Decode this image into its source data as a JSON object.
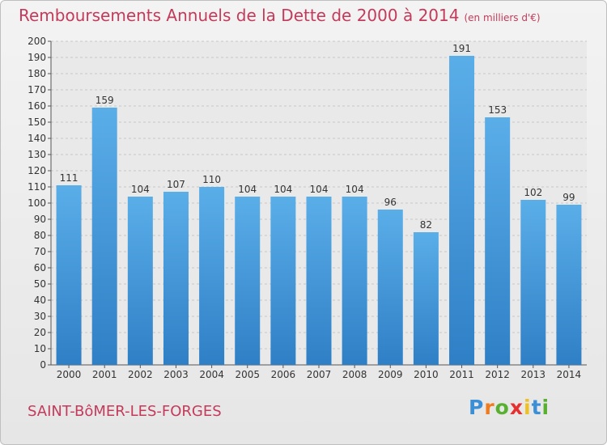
{
  "chart_data": {
    "type": "bar",
    "title": "Remboursements Annuels de la Dette de 2000 à 2014",
    "subtitle": "(en milliers d'€)",
    "xlabel": "",
    "ylabel": "",
    "categories": [
      "2000",
      "2001",
      "2002",
      "2003",
      "2004",
      "2005",
      "2006",
      "2007",
      "2008",
      "2009",
      "2010",
      "2011",
      "2012",
      "2013",
      "2014"
    ],
    "values": [
      111,
      159,
      104,
      107,
      110,
      104,
      104,
      104,
      104,
      96,
      82,
      191,
      153,
      102,
      99
    ],
    "ylim": [
      0,
      200
    ],
    "ytick_step": 10,
    "grid": true,
    "legend": "none",
    "bar_color": "#4d9fe0",
    "bar_color_dark": "#2f7fc6"
  },
  "footer": {
    "commune": "SAINT-BôMER-LES-FORGES",
    "logo_letters": [
      "P",
      "r",
      "o",
      "x",
      "i",
      "t",
      "i"
    ],
    "logo_colors": [
      "#3a8fd6",
      "#f07a1e",
      "#58b030",
      "#e63030",
      "#f0c020",
      "#3a8fd6",
      "#58b030"
    ]
  }
}
